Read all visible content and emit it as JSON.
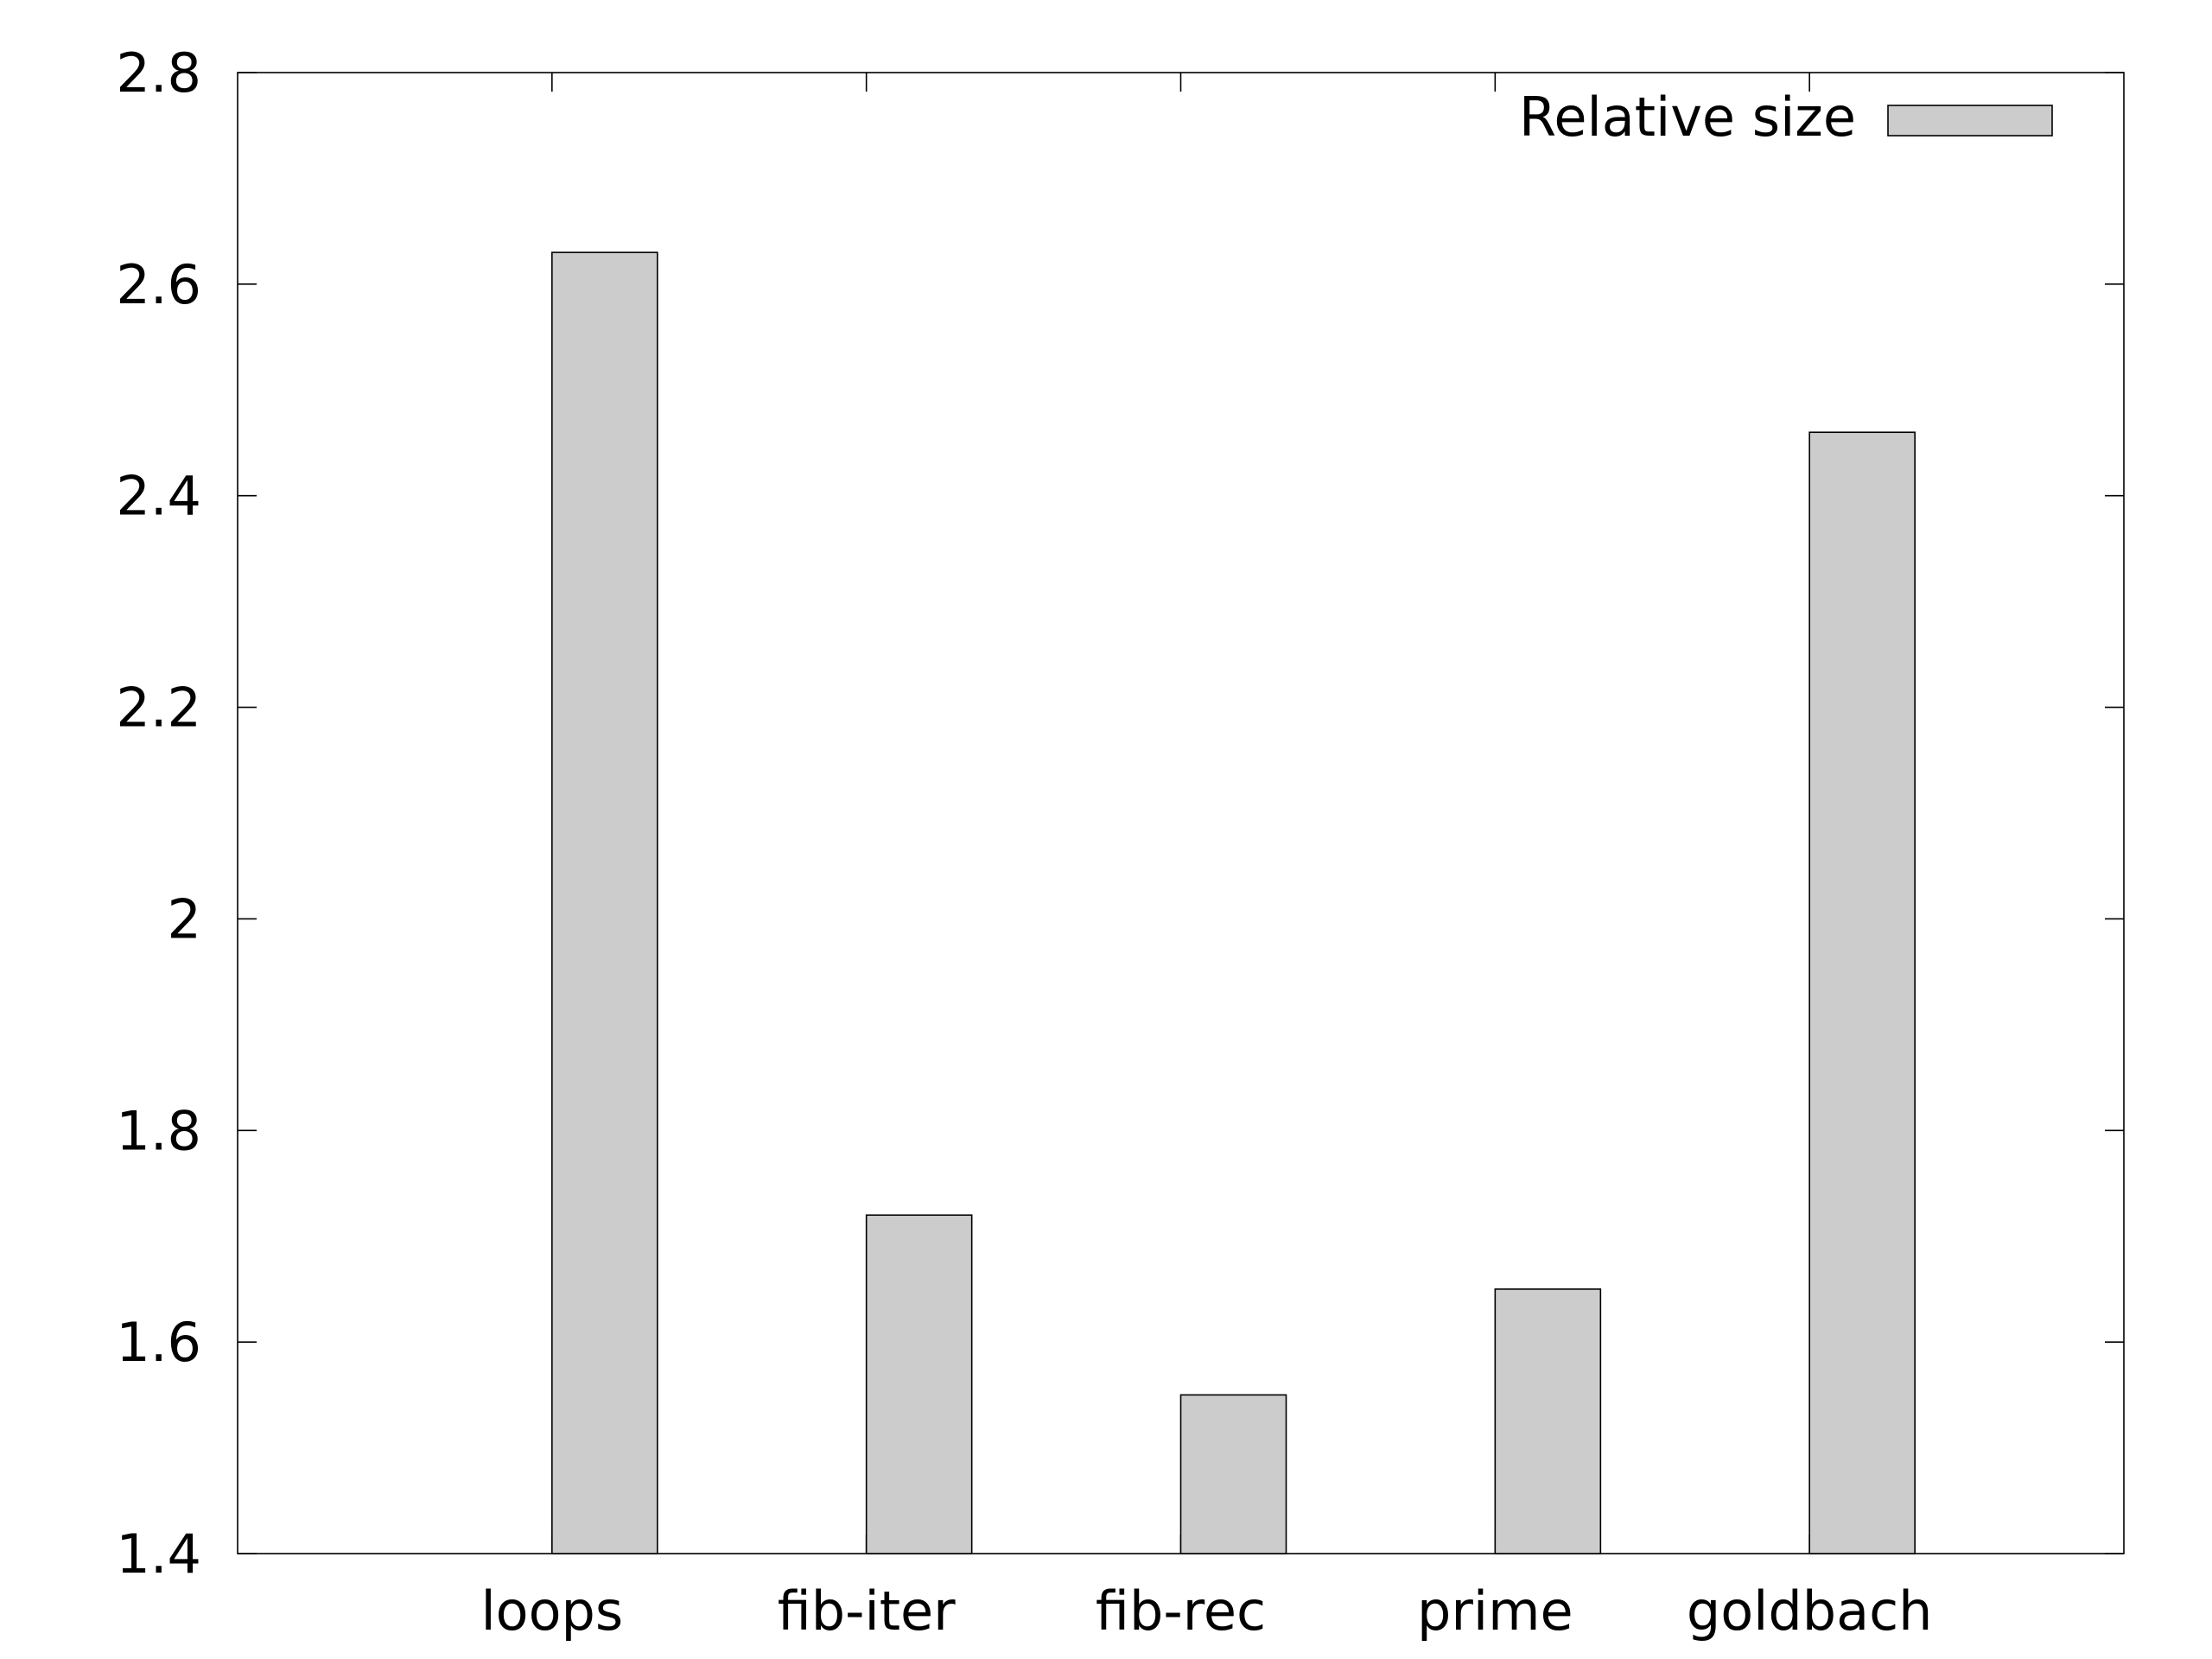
{
  "chart_data": {
    "type": "bar",
    "categories": [
      "loops",
      "fib-iter",
      "fib-rec",
      "prime",
      "goldbach"
    ],
    "series": [
      {
        "name": "Relative size",
        "values": [
          2.63,
          1.72,
          1.55,
          1.65,
          2.46
        ],
        "color": "#cccccc"
      }
    ],
    "title": "",
    "xlabel": "",
    "ylabel": "",
    "ylim": [
      1.4,
      2.8
    ],
    "yticks": [
      1.4,
      1.6,
      1.8,
      2.0,
      2.2,
      2.4,
      2.6,
      2.8
    ],
    "ytick_labels": [
      "1.4",
      "1.6",
      "1.8",
      "2",
      "2.2",
      "2.4",
      "2.6",
      "2.8"
    ],
    "grid": false,
    "legend_position": "top-right"
  }
}
